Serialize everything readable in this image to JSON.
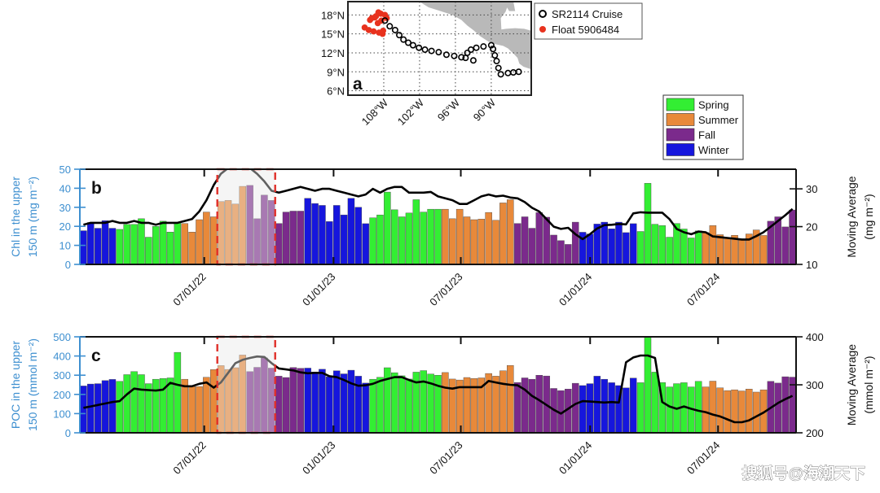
{
  "watermark": "搜狐号@海潮天下",
  "season_colors": {
    "Spring": "#33ee33",
    "Summer": "#e8893a",
    "Fall": "#7b2a8c",
    "Winter": "#1616dd"
  },
  "chart_data": [
    {
      "id": "a",
      "type": "scatter",
      "panel_label": "a",
      "title": "",
      "xlim": [
        -114.0,
        -83.3
      ],
      "ylim": [
        5.3,
        20.1
      ],
      "x_ticks": [
        -108,
        -102,
        -96,
        -90
      ],
      "x_tick_labels": [
        "108°W",
        "102°W",
        "96°W",
        "90°W"
      ],
      "y_ticks": [
        18,
        15,
        12,
        9,
        6
      ],
      "y_tick_labels": [
        "18°N",
        "15°N",
        "12°N",
        "9°N",
        "6°N"
      ],
      "grid": true,
      "legend_placement": "outside-right",
      "series": [
        {
          "name": "SR2114 Cruise",
          "marker": "open-circle",
          "color": "#000000",
          "points": [
            [
              -107.8,
              17.1
            ],
            [
              -107.0,
              16.2
            ],
            [
              -106.1,
              15.6
            ],
            [
              -105.4,
              14.8
            ],
            [
              -104.7,
              14.1
            ],
            [
              -103.9,
              13.6
            ],
            [
              -103.1,
              13.2
            ],
            [
              -102.1,
              12.8
            ],
            [
              -101.1,
              12.5
            ],
            [
              -100.0,
              12.3
            ],
            [
              -98.8,
              12.1
            ],
            [
              -97.5,
              11.7
            ],
            [
              -96.2,
              11.5
            ],
            [
              -95.0,
              11.3
            ],
            [
              -94.3,
              11.2
            ],
            [
              -93.0,
              10.8
            ],
            [
              -94.0,
              12.0
            ],
            [
              -93.4,
              12.5
            ],
            [
              -92.5,
              12.8
            ],
            [
              -91.3,
              13.0
            ],
            [
              -90.0,
              13.2
            ],
            [
              -89.7,
              12.6
            ],
            [
              -89.4,
              11.6
            ],
            [
              -89.1,
              10.7
            ],
            [
              -88.8,
              9.6
            ],
            [
              -88.4,
              8.6
            ],
            [
              -87.2,
              8.8
            ],
            [
              -86.3,
              8.9
            ],
            [
              -85.4,
              9.0
            ]
          ]
        },
        {
          "name": "Float 5906484",
          "marker": "filled-circle",
          "color": "#e8321e",
          "points": [
            [
              -111.2,
              16.0
            ],
            [
              -110.5,
              15.6
            ],
            [
              -109.7,
              15.4
            ],
            [
              -108.8,
              15.2
            ],
            [
              -108.2,
              15.0
            ],
            [
              -108.1,
              15.5
            ],
            [
              -109.0,
              16.7
            ],
            [
              -110.0,
              17.5
            ],
            [
              -109.3,
              17.8
            ],
            [
              -108.5,
              18.2
            ],
            [
              -107.8,
              18.0
            ],
            [
              -107.5,
              17.5
            ],
            [
              -108.4,
              17.1
            ],
            [
              -109.5,
              17.6
            ],
            [
              -110.3,
              17.2
            ],
            [
              -108.9,
              18.4
            ]
          ]
        }
      ]
    },
    {
      "id": "b",
      "type": "bar",
      "panel_label": "b",
      "ylabel": [
        "Chl  in the upper",
        "150 m  (mg m⁻²)"
      ],
      "ylabel_right": [
        "Moving Average",
        "(mg m⁻²)"
      ],
      "ylim": [
        0,
        50
      ],
      "y_ticks": [
        0,
        10,
        20,
        30,
        40,
        50
      ],
      "ylim_right": [
        10,
        35.2
      ],
      "y_ticks_right": [
        10,
        20,
        30
      ],
      "x_range": [
        "2022-01-05",
        "2024-10-20"
      ],
      "x_ticks": [
        "2022-07-01",
        "2023-01-01",
        "2023-07-01",
        "2024-01-01",
        "2024-07-01"
      ],
      "x_tick_labels": [
        "07/01/22",
        "01/01/23",
        "07/01/23",
        "01/01/24",
        "07/01/24"
      ],
      "season_runs": [
        [
          "Winter",
          5
        ],
        [
          "Spring",
          9
        ],
        [
          "Summer",
          9
        ],
        [
          "Fall",
          8
        ],
        [
          "Winter",
          9
        ],
        [
          "Spring",
          10
        ],
        [
          "Summer",
          10
        ],
        [
          "Fall",
          9
        ],
        [
          "Winter",
          8
        ],
        [
          "Spring",
          9
        ],
        [
          "Summer",
          9
        ],
        [
          "Fall",
          4
        ]
      ],
      "highlight_bars": [
        19,
        26
      ],
      "values": [
        17.7,
        22,
        19,
        23,
        19,
        18.4,
        21,
        21,
        24,
        14.3,
        20,
        22.7,
        17,
        22,
        21.5,
        17,
        23.5,
        27.5,
        25,
        33,
        33.6,
        31.7,
        41,
        41.5,
        24,
        36.4,
        33.6,
        21.5,
        27.5,
        28,
        28,
        34.7,
        32,
        31,
        22.5,
        31,
        26,
        34.7,
        30,
        21.4,
        24.5,
        26,
        38,
        28.7,
        25,
        27,
        34,
        27.5,
        29,
        29,
        29,
        24,
        29,
        25,
        23.5,
        23.8,
        27.3,
        23.2,
        32.3,
        34,
        21.5,
        25,
        19,
        27.2,
        24.8,
        15.4,
        12.5,
        10.5,
        22.2,
        16.9,
        16,
        21.2,
        22.2,
        18.7,
        22.2,
        16.7,
        21.4,
        17.3,
        42.6,
        21.1,
        20.4,
        14.3,
        21.5,
        18.6,
        13.9,
        17.6,
        16.7,
        20.4,
        15.6,
        13.7,
        15.3,
        12.7,
        16,
        18.1,
        15.2,
        22.7,
        25,
        19.7,
        28.6
      ],
      "moving_average": [
        20.5,
        21,
        21,
        21,
        21.5,
        21,
        21,
        21.5,
        21,
        21,
        20.5,
        21,
        21,
        21,
        21.5,
        22,
        24,
        27,
        31,
        34,
        35.5,
        35.5,
        35.5,
        35.5,
        34,
        32,
        29.5,
        29,
        29.5,
        30,
        30.5,
        30,
        29.5,
        30,
        30,
        29.5,
        29,
        28.5,
        28,
        28.5,
        30,
        29,
        30,
        30.5,
        30.5,
        29,
        29,
        29,
        29.2,
        28,
        27.5,
        27,
        26,
        26,
        27,
        28,
        28.5,
        28,
        28.2,
        27.7,
        27.5,
        26.5,
        25,
        24,
        22,
        20,
        19.4,
        19.7,
        18,
        16.7,
        18,
        19.5,
        20.4,
        20.5,
        20.7,
        20.6,
        23.5,
        23.8,
        23.7,
        23.7,
        23.7,
        22,
        19.4,
        18.5,
        18,
        18.7,
        18.5,
        17.4,
        17.2,
        17,
        16.8,
        16.6,
        16.6,
        17.5,
        18.5,
        20,
        21.5,
        23,
        24.7
      ],
      "legend": [
        "Spring",
        "Summer",
        "Fall",
        "Winter"
      ],
      "legend_placement": "top-right"
    },
    {
      "id": "c",
      "type": "bar",
      "panel_label": "c",
      "ylabel": [
        "POC in the upper",
        "150 m  (mmol m⁻²)"
      ],
      "ylabel_right": [
        "Moving Average",
        "(mmol m⁻²)"
      ],
      "ylim": [
        0,
        500
      ],
      "y_ticks": [
        0,
        100,
        200,
        300,
        400,
        500
      ],
      "ylim_right": [
        200,
        400
      ],
      "y_ticks_right": [
        200,
        300,
        400
      ],
      "x_range": [
        "2022-01-05",
        "2024-10-20"
      ],
      "x_ticks": [
        "2022-07-01",
        "2023-01-01",
        "2023-07-01",
        "2024-01-01",
        "2024-07-01"
      ],
      "x_tick_labels": [
        "07/01/22",
        "01/01/23",
        "07/01/23",
        "01/01/24",
        "07/01/24"
      ],
      "season_runs": [
        [
          "Winter",
          5
        ],
        [
          "Spring",
          9
        ],
        [
          "Summer",
          9
        ],
        [
          "Fall",
          8
        ],
        [
          "Winter",
          9
        ],
        [
          "Spring",
          10
        ],
        [
          "Summer",
          10
        ],
        [
          "Fall",
          9
        ],
        [
          "Winter",
          8
        ],
        [
          "Spring",
          9
        ],
        [
          "Summer",
          9
        ],
        [
          "Fall",
          4
        ]
      ],
      "highlight_bars": [
        19,
        26
      ],
      "values": [
        244,
        254,
        256,
        272,
        278,
        268,
        303,
        319,
        303,
        256,
        279,
        283,
        286,
        419,
        279,
        241,
        241,
        289,
        329,
        350,
        330,
        339,
        405,
        319,
        341,
        390,
        337,
        295,
        288,
        340,
        336,
        337,
        317,
        331,
        292,
        323,
        307,
        326,
        295,
        259,
        279,
        289,
        339,
        313,
        297,
        280,
        316,
        324,
        306,
        300,
        314,
        280,
        275,
        288,
        283,
        286,
        309,
        295,
        323,
        351,
        262,
        286,
        279,
        300,
        296,
        231,
        220,
        228,
        258,
        246,
        256,
        295,
        279,
        261,
        246,
        234,
        285,
        261,
        520,
        316,
        262,
        239,
        256,
        261,
        239,
        268,
        239,
        269,
        234,
        220,
        224,
        218,
        228,
        212,
        224,
        268,
        259,
        292,
        290
      ],
      "moving_average": [
        252,
        255,
        258,
        261,
        264,
        266,
        280,
        292,
        290,
        289,
        288,
        290,
        304,
        300,
        297,
        297,
        302,
        305,
        294,
        305,
        325,
        345,
        352,
        356,
        359,
        358,
        345,
        334,
        332,
        330,
        326,
        324,
        325,
        325,
        318,
        316,
        310,
        303,
        298,
        299,
        302,
        308,
        312,
        316,
        316,
        310,
        305,
        307,
        303,
        298,
        294,
        292,
        295,
        295,
        295,
        295,
        308,
        305,
        302,
        300,
        299,
        290,
        277,
        268,
        258,
        248,
        240,
        250,
        260,
        266,
        265,
        264,
        263,
        264,
        263,
        347,
        357,
        361,
        361,
        356,
        264,
        255,
        250,
        255,
        250,
        246,
        243,
        238,
        234,
        228,
        222,
        222,
        226,
        234,
        242,
        252,
        262,
        270,
        277
      ]
    }
  ]
}
